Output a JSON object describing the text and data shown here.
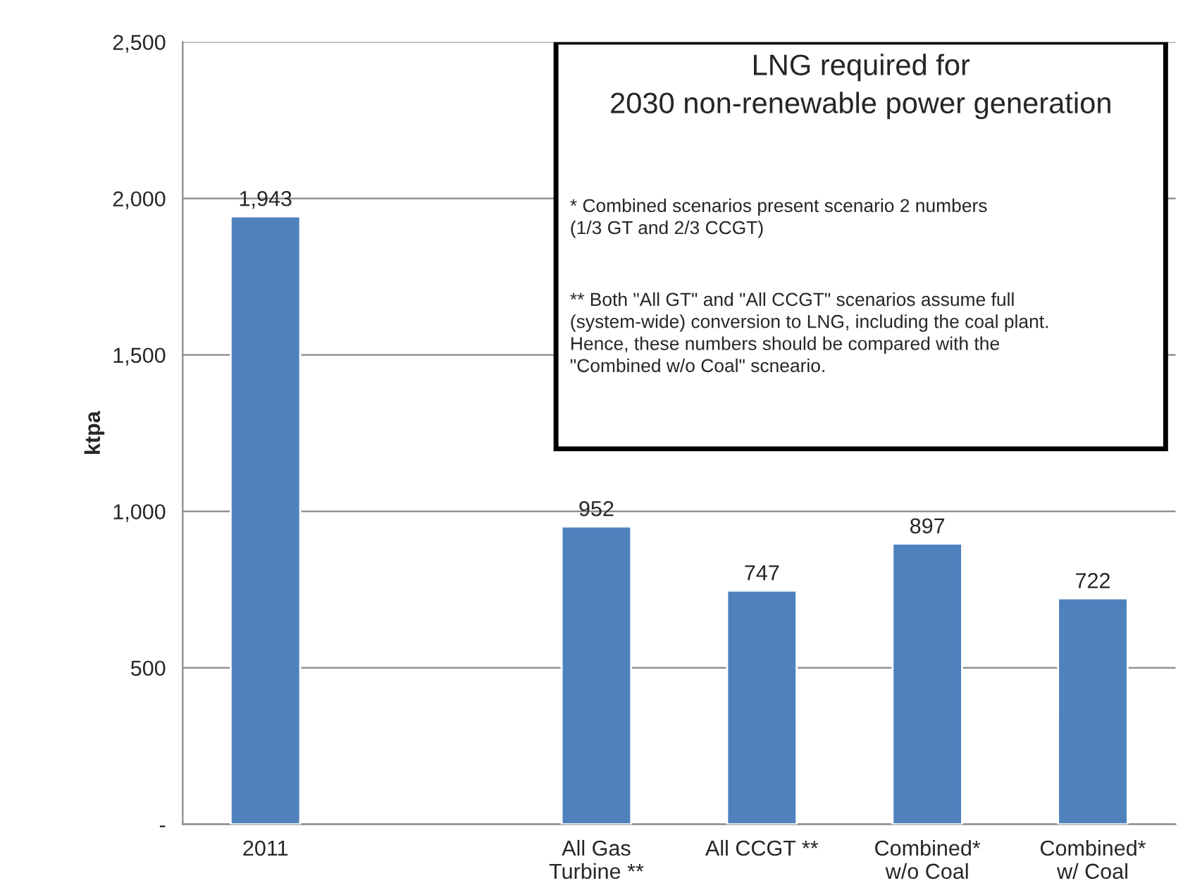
{
  "chart_data": {
    "type": "bar",
    "title": "LNG required for\n2030 non-renewable power generation",
    "ylabel": "ktpa",
    "categories": [
      "2011",
      null,
      "All Gas\nTurbine **",
      "All CCGT **",
      "Combined*\nw/o Coal",
      "Combined*\nw/ Coal"
    ],
    "values": [
      1943,
      null,
      952,
      747,
      897,
      722
    ],
    "value_labels": [
      "1,943",
      null,
      "952",
      "747",
      "897",
      "722"
    ],
    "color": "#4f81bd",
    "ylim": [
      0,
      2500
    ],
    "yticks": [
      {
        "value": 0,
        "label": "-"
      },
      {
        "value": 500,
        "label": "500"
      },
      {
        "value": 1000,
        "label": "1,000"
      },
      {
        "value": 1500,
        "label": "1,500"
      },
      {
        "value": 2000,
        "label": "2,000"
      },
      {
        "value": 2500,
        "label": "2,500"
      }
    ],
    "grid": "y",
    "annotations": [
      "* Combined scenarios present scenario 2 numbers\n(1/3 GT and 2/3 CCGT)",
      "** Both \"All GT\" and \"All CCGT\" scenarios assume full\n(system-wide) conversion to LNG, including the coal plant.\nHence, these numbers should be compared with the\n\"Combined w/o Coal\" scneario."
    ]
  }
}
